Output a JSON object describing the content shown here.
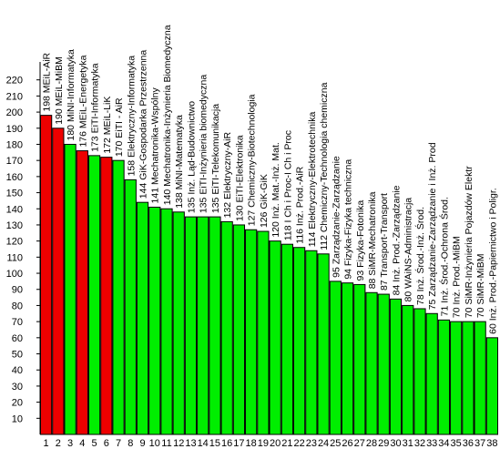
{
  "chart_data": {
    "type": "bar",
    "title": "",
    "xlabel": "",
    "ylabel": "",
    "ylim": [
      0,
      230
    ],
    "y_tick_step": 10,
    "grid": false,
    "legend": "none",
    "colors": {
      "highlight": "#ee0000",
      "normal": "#00ee00",
      "outline": "#000000"
    },
    "categories": [
      "1",
      "2",
      "3",
      "4",
      "5",
      "6",
      "7",
      "8",
      "9",
      "10",
      "11",
      "12",
      "13",
      "14",
      "15",
      "16",
      "17",
      "18",
      "19",
      "20",
      "21",
      "22",
      "23",
      "24",
      "25",
      "26",
      "27",
      "28",
      "29",
      "30",
      "31",
      "32",
      "33",
      "34",
      "35",
      "36",
      "37",
      "38"
    ],
    "values": [
      198,
      190,
      180,
      176,
      173,
      172,
      170,
      158,
      144,
      141,
      140,
      138,
      135,
      135,
      135,
      132,
      130,
      127,
      126,
      120,
      118,
      116,
      114,
      112,
      95,
      94,
      93,
      88,
      87,
      84,
      80,
      78,
      75,
      71,
      70,
      70,
      70,
      60
    ],
    "highlighted": [
      true,
      true,
      false,
      true,
      false,
      true,
      false,
      false,
      false,
      false,
      false,
      false,
      false,
      false,
      false,
      false,
      false,
      false,
      false,
      false,
      false,
      false,
      false,
      false,
      false,
      false,
      false,
      false,
      false,
      false,
      false,
      false,
      false,
      false,
      false,
      false,
      false,
      false
    ],
    "labels": [
      "198 MEiL-AiR",
      "190 MEiL-MiBM",
      "180 MiNI-Informatyka",
      "176 MEiL-Energetyka",
      "173 EiTI-Informatyka",
      "172 MEiL-LiK",
      "170 EiTI - AiR",
      "158 Elektryczny-Informatyka",
      "144 GiK-Gospodarka Przestrzenna",
      "141 Mechatronika-Wspólny",
      "140 Mechatronika-Inżynieria Biomedyczna",
      "138 MiNI-Matematyka",
      "135 Inż. Ląd-Budownictwo",
      "135 EiTI-Inżynieria biomedyczna",
      "135 EiTI-Telekomunikacja",
      "132 Elektryczny-AiR",
      "130 EiTI-Elektronika",
      "127 Chemiczny-Biotechnologia",
      "126 GiK-GiK",
      "120 Inż. Mat.-Inż. Mat.",
      "118 I Ch i Proc-I Ch i Proc",
      "116 Inż. Prod.-AiR",
      "114 Elektryczny-Elektrotechnika",
      "112 Chemiczny-Technologia chemiczna",
      "95 Zarządzanie-Zarządzanie",
      "94 Fizyka-Fizyka techniczna",
      "93 Fizyka-Fotonika",
      "88 SiMR-Mechatronika",
      "87 Transport-Transport",
      "84 Inż. Prod.-Zarządzanie",
      "80 WAiNS-Administracja",
      "78 Inż. Środ.-Inż. Środ.",
      "75 Zarządzanie-Zarządzanie i Inż. Prod",
      "71 Inż. Środ.-Ochrona Środ.",
      "70 Inż. Prod.-MiBM",
      "70 SiMR-Inżynieria Pojazdów Elektr",
      "70 SiMR-MiBM",
      "60 Inż. Prod.-Papiernictwo i Poligr."
    ]
  }
}
